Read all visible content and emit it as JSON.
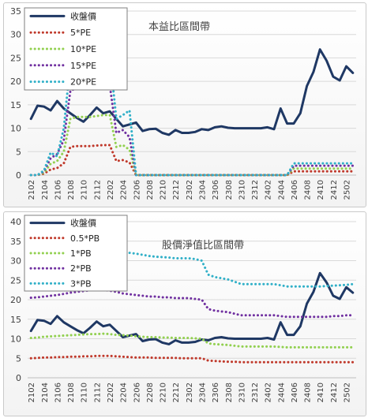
{
  "chart_data": [
    {
      "type": "line",
      "title": "本益比區間帶",
      "ylim": [
        0,
        35
      ],
      "yticks": [
        0,
        5,
        10,
        15,
        20,
        25,
        30,
        35
      ],
      "x_tick_labels": [
        "2102",
        "2104",
        "2106",
        "2108",
        "2110",
        "2112",
        "2202",
        "2204",
        "2206",
        "2208",
        "2210",
        "2212",
        "2302",
        "2304",
        "2306",
        "2308",
        "2310",
        "2312",
        "2402",
        "2404",
        "2406",
        "2408",
        "2410",
        "2412",
        "2502"
      ],
      "n_points": 50,
      "grid": "horizontal",
      "legend_position": "top-left",
      "series": [
        {
          "name": "收盤價",
          "color": "#1f3864",
          "style": "solid",
          "values": [
            12.0,
            14.8,
            14.6,
            13.8,
            15.8,
            14.2,
            13.2,
            12.2,
            11.4,
            12.8,
            14.4,
            13.2,
            13.6,
            12.0,
            10.4,
            10.8,
            11.2,
            9.4,
            9.8,
            9.9,
            9.0,
            8.6,
            9.6,
            9.0,
            9.0,
            9.2,
            9.8,
            9.6,
            10.2,
            10.4,
            10.1,
            10.0,
            10.0,
            10.0,
            10.0,
            10.0,
            10.2,
            9.8,
            14.2,
            11.0,
            11.0,
            13.2,
            19.0,
            22.0,
            26.8,
            24.4,
            21.0,
            20.2,
            23.2,
            21.8
          ]
        },
        {
          "name": "5*PE",
          "color": "#c0392b",
          "style": "dotted",
          "values": [
            0,
            0,
            0.3,
            1.2,
            1.5,
            2.5,
            6.0,
            6.2,
            6.2,
            6.2,
            6.3,
            6.4,
            6.4,
            3.0,
            3.2,
            2.7,
            0,
            0,
            0,
            0,
            0,
            0,
            0,
            0,
            0,
            0,
            0,
            0,
            0,
            0,
            0,
            0,
            0,
            0,
            0,
            0,
            0,
            0,
            0,
            0,
            0.8,
            0.8,
            0.8,
            0.8,
            0.8,
            0.8,
            0.8,
            0.8,
            0.8,
            0.8
          ]
        },
        {
          "name": "10*PE",
          "color": "#92d050",
          "style": "dotted",
          "values": [
            0,
            0,
            0.5,
            2.4,
            3.0,
            5.0,
            12.0,
            12.4,
            12.4,
            12.4,
            12.6,
            12.8,
            12.8,
            6.0,
            6.4,
            5.4,
            0,
            0,
            0,
            0,
            0,
            0,
            0,
            0,
            0,
            0,
            0,
            0,
            0,
            0,
            0,
            0,
            0,
            0,
            0,
            0,
            0,
            0,
            0,
            0,
            1.4,
            1.4,
            1.4,
            1.4,
            1.4,
            1.4,
            1.4,
            1.4,
            1.4,
            1.4
          ]
        },
        {
          "name": "15*PE",
          "color": "#7030a0",
          "style": "dotted",
          "values": [
            0,
            0,
            0.8,
            3.6,
            4.5,
            7.5,
            18.0,
            18.6,
            18.6,
            18.6,
            18.9,
            19.2,
            19.2,
            9.0,
            9.6,
            8.1,
            0,
            0,
            0,
            0,
            0,
            0,
            0,
            0,
            0,
            0,
            0,
            0,
            0,
            0,
            0,
            0,
            0,
            0,
            0,
            0,
            0,
            0,
            0,
            0,
            2.0,
            2.0,
            2.0,
            2.0,
            2.0,
            2.0,
            2.0,
            2.0,
            2.0,
            2.0
          ]
        },
        {
          "name": "20*PE",
          "color": "#31b0c8",
          "style": "dotted",
          "values": [
            0,
            0,
            1.0,
            4.8,
            4.0,
            10.0,
            24.0,
            24.8,
            24.8,
            24.8,
            25.2,
            25.6,
            25.6,
            12.0,
            12.8,
            13.8,
            0,
            0,
            0,
            0,
            0,
            0,
            0,
            0,
            0,
            0,
            0,
            0,
            0,
            0,
            0,
            0,
            0,
            0,
            0,
            0,
            0,
            0,
            0,
            0,
            2.5,
            2.5,
            2.5,
            2.5,
            2.5,
            2.5,
            2.5,
            2.5,
            2.5,
            2.5
          ]
        }
      ]
    },
    {
      "type": "line",
      "title": "股價淨值比區間帶",
      "ylim": [
        0,
        40
      ],
      "yticks": [
        0,
        5,
        10,
        15,
        20,
        25,
        30,
        35,
        40
      ],
      "x_tick_labels": [
        "2102",
        "2104",
        "2106",
        "2108",
        "2110",
        "2112",
        "2202",
        "2204",
        "2206",
        "2208",
        "2210",
        "2212",
        "2302",
        "2304",
        "2306",
        "2308",
        "2310",
        "2312",
        "2402",
        "2404",
        "2406",
        "2408",
        "2410",
        "2412",
        "2502"
      ],
      "n_points": 50,
      "grid": "horizontal",
      "legend_position": "top-left",
      "series": [
        {
          "name": "收盤價",
          "color": "#1f3864",
          "style": "solid",
          "values": [
            12.0,
            14.8,
            14.6,
            13.8,
            15.8,
            14.2,
            13.2,
            12.2,
            11.4,
            12.8,
            14.4,
            13.2,
            13.6,
            12.0,
            10.4,
            10.8,
            11.2,
            9.4,
            9.8,
            9.9,
            9.0,
            8.6,
            9.6,
            9.0,
            9.0,
            9.2,
            9.8,
            9.6,
            10.2,
            10.4,
            10.1,
            10.0,
            10.0,
            10.0,
            10.0,
            10.0,
            10.2,
            9.8,
            14.2,
            11.0,
            11.0,
            13.2,
            19.0,
            22.0,
            26.8,
            24.4,
            21.0,
            20.2,
            23.2,
            21.8
          ]
        },
        {
          "name": "0.5*PB",
          "color": "#c0392b",
          "style": "dotted",
          "values": [
            5.0,
            5.1,
            5.2,
            5.2,
            5.3,
            5.3,
            5.4,
            5.4,
            5.5,
            5.5,
            5.6,
            5.6,
            5.6,
            5.5,
            5.4,
            5.3,
            5.2,
            5.2,
            5.2,
            5.1,
            5.1,
            5.1,
            5.1,
            5.0,
            5.0,
            5.0,
            5.0,
            4.4,
            4.3,
            4.2,
            4.1,
            4.1,
            4.0,
            4.0,
            4.0,
            4.0,
            4.0,
            4.0,
            4.0,
            4.0,
            4.0,
            4.0,
            4.0,
            4.0,
            4.0,
            4.0,
            4.0,
            4.0,
            4.0,
            4.0
          ]
        },
        {
          "name": "1*PB",
          "color": "#92d050",
          "style": "dotted",
          "values": [
            10.2,
            10.3,
            10.5,
            10.6,
            10.7,
            10.8,
            10.9,
            11.0,
            11.1,
            11.2,
            11.2,
            11.3,
            11.2,
            11.0,
            10.9,
            10.8,
            10.6,
            10.5,
            10.4,
            10.4,
            10.3,
            10.3,
            10.2,
            10.2,
            10.2,
            10.1,
            10.0,
            8.8,
            8.6,
            8.5,
            8.4,
            8.2,
            8.0,
            8.0,
            8.0,
            8.0,
            8.0,
            8.0,
            7.9,
            7.8,
            7.8,
            7.8,
            7.8,
            7.8,
            7.8,
            7.8,
            7.8,
            7.8,
            7.8,
            7.8
          ]
        },
        {
          "name": "2*PB",
          "color": "#7030a0",
          "style": "dotted",
          "values": [
            20.5,
            20.6,
            20.8,
            21.0,
            21.2,
            21.5,
            21.8,
            22.0,
            22.2,
            22.4,
            22.5,
            22.5,
            22.3,
            22.0,
            21.6,
            21.4,
            21.2,
            21.0,
            20.8,
            20.8,
            20.6,
            20.6,
            20.4,
            20.4,
            20.4,
            20.2,
            20.0,
            17.6,
            17.2,
            17.0,
            16.8,
            16.4,
            16.0,
            16.0,
            16.0,
            16.0,
            16.0,
            16.0,
            15.8,
            15.6,
            15.6,
            15.6,
            15.6,
            15.6,
            15.6,
            15.6,
            15.8,
            15.8,
            16.0,
            16.0
          ]
        },
        {
          "name": "3*PB",
          "color": "#31b0c8",
          "style": "dotted",
          "values": [
            30.8,
            30.9,
            31.2,
            31.5,
            31.8,
            32.2,
            32.7,
            33.0,
            33.3,
            33.6,
            33.7,
            33.8,
            33.4,
            33.0,
            32.4,
            32.0,
            31.8,
            31.5,
            31.2,
            31.0,
            30.9,
            30.8,
            30.6,
            30.6,
            30.6,
            30.4,
            30.0,
            26.4,
            25.8,
            25.5,
            25.2,
            24.6,
            24.0,
            24.0,
            24.0,
            24.0,
            24.0,
            24.0,
            23.7,
            23.4,
            23.4,
            23.4,
            23.4,
            23.4,
            23.4,
            23.5,
            23.6,
            23.7,
            23.8,
            24.0
          ]
        }
      ]
    }
  ]
}
